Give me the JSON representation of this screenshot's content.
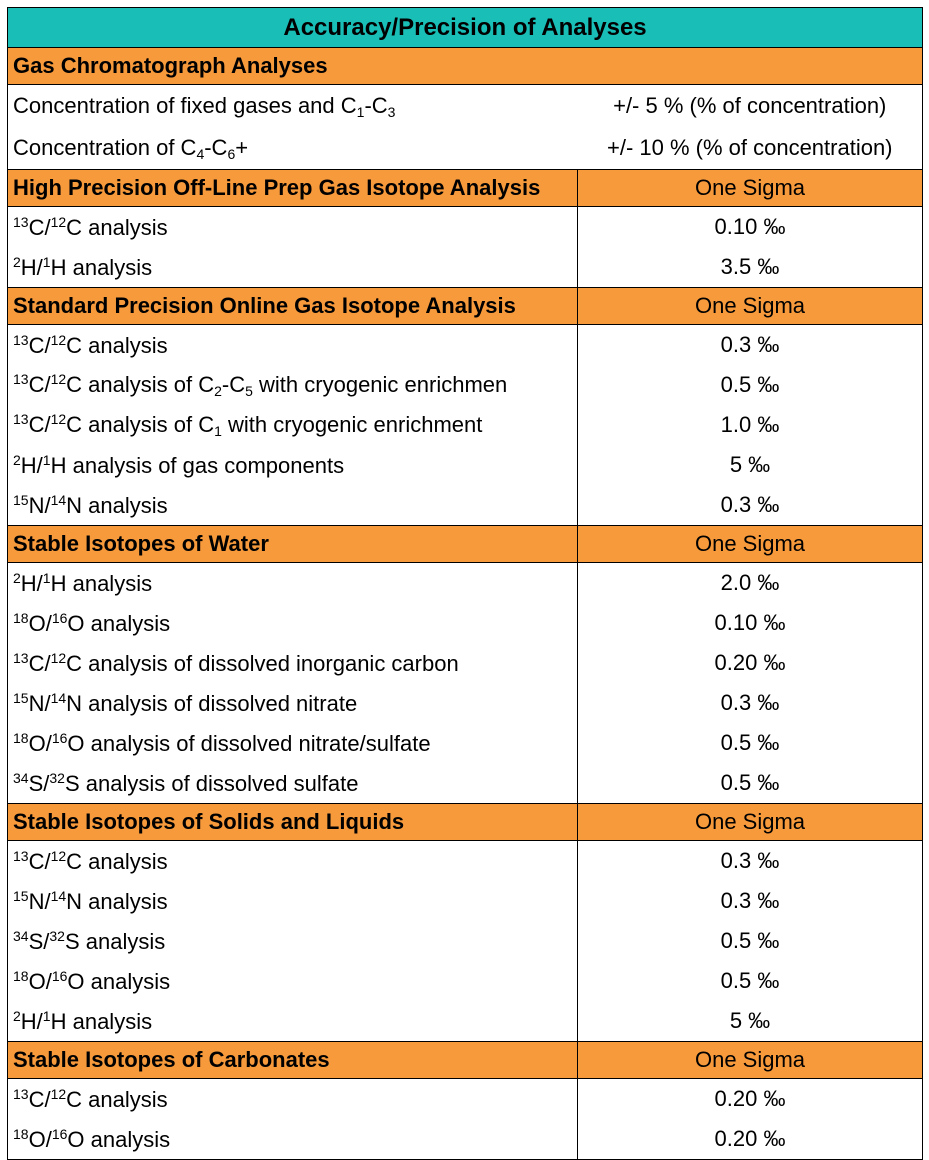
{
  "title": "Accuracy/Precision of Analyses",
  "sections": [
    {
      "header": "Gas Chromatograph Analyses",
      "rows": [
        {
          "label": [
            "Concentration of fixed gases and C",
            {
              "sub": "1"
            },
            "-C",
            {
              "sub": "3"
            }
          ],
          "value": "+/- 5 % (% of concentration)"
        },
        {
          "label": [
            "Concentration of C",
            {
              "sub": "4"
            },
            "-C",
            {
              "sub": "6"
            },
            "+"
          ],
          "value": "+/- 10 % (% of concentration)"
        }
      ]
    },
    {
      "header": "High Precision Off-Line Prep Gas Isotope Analysis",
      "header_value": "One Sigma",
      "rows": [
        {
          "label": [
            {
              "sup": "13"
            },
            "C/",
            {
              "sup": "12"
            },
            "C analysis"
          ],
          "value": "0.10 ‰"
        },
        {
          "label": [
            {
              "sup": "2"
            },
            "H/",
            {
              "sup": "1"
            },
            "H analysis"
          ],
          "value": "3.5 ‰"
        }
      ]
    },
    {
      "header": "Standard Precision Online Gas Isotope Analysis",
      "header_value": "One Sigma",
      "rows": [
        {
          "label": [
            {
              "sup": "13"
            },
            "C/",
            {
              "sup": "12"
            },
            "C analysis"
          ],
          "value": "0.3 ‰"
        },
        {
          "label": [
            {
              "sup": "13"
            },
            "C/",
            {
              "sup": "12"
            },
            "C analysis of C",
            {
              "sub": "2"
            },
            "-C",
            {
              "sub": "5"
            },
            " with cryogenic enrichmen"
          ],
          "value": "0.5 ‰"
        },
        {
          "label": [
            {
              "sup": "13"
            },
            "C/",
            {
              "sup": "12"
            },
            "C analysis of C",
            {
              "sub": "1"
            },
            " with cryogenic enrichment"
          ],
          "value": "1.0 ‰"
        },
        {
          "label": [
            {
              "sup": "2"
            },
            "H/",
            {
              "sup": "1"
            },
            "H analysis of gas components"
          ],
          "value": "5 ‰"
        },
        {
          "label": [
            {
              "sup": "15"
            },
            "N/",
            {
              "sup": "14"
            },
            "N analysis"
          ],
          "value": "0.3 ‰"
        }
      ]
    },
    {
      "header": "Stable Isotopes of Water",
      "header_value": "One Sigma",
      "rows": [
        {
          "label": [
            {
              "sup": "2"
            },
            "H/",
            {
              "sup": "1"
            },
            "H analysis"
          ],
          "value": "2.0 ‰"
        },
        {
          "label": [
            {
              "sup": "18"
            },
            "O/",
            {
              "sup": "16"
            },
            "O analysis"
          ],
          "value": "0.10 ‰"
        },
        {
          "label": [
            {
              "sup": "13"
            },
            "C/",
            {
              "sup": "12"
            },
            "C analysis of dissolved inorganic carbon"
          ],
          "value": "0.20 ‰"
        },
        {
          "label": [
            {
              "sup": "15"
            },
            "N/",
            {
              "sup": "14"
            },
            "N analysis of dissolved nitrate"
          ],
          "value": "0.3 ‰"
        },
        {
          "label": [
            {
              "sup": "18"
            },
            "O/",
            {
              "sup": "16"
            },
            "O analysis of dissolved nitrate/sulfate"
          ],
          "value": "0.5 ‰"
        },
        {
          "label": [
            {
              "sup": "34"
            },
            "S/",
            {
              "sup": "32"
            },
            "S analysis of dissolved sulfate"
          ],
          "value": "0.5 ‰"
        }
      ]
    },
    {
      "header": "Stable Isotopes of Solids and Liquids",
      "header_value": "One Sigma",
      "rows": [
        {
          "label": [
            {
              "sup": "13"
            },
            "C/",
            {
              "sup": "12"
            },
            "C analysis"
          ],
          "value": "0.3 ‰"
        },
        {
          "label": [
            {
              "sup": "15"
            },
            "N/",
            {
              "sup": "14"
            },
            "N analysis"
          ],
          "value": "0.3 ‰"
        },
        {
          "label": [
            {
              "sup": "34"
            },
            "S/",
            {
              "sup": "32"
            },
            "S analysis"
          ],
          "value": "0.5 ‰"
        },
        {
          "label": [
            {
              "sup": "18"
            },
            "O/",
            {
              "sup": "16"
            },
            "O analysis"
          ],
          "value": "0.5 ‰"
        },
        {
          "label": [
            {
              "sup": "2"
            },
            "H/",
            {
              "sup": "1"
            },
            "H analysis"
          ],
          "value": "5 ‰"
        }
      ]
    },
    {
      "header": "Stable Isotopes of Carbonates",
      "header_value": "One Sigma",
      "rows": [
        {
          "label": [
            {
              "sup": "13"
            },
            "C/",
            {
              "sup": "12"
            },
            "C analysis"
          ],
          "value": "0.20 ‰"
        },
        {
          "label": [
            {
              "sup": "18"
            },
            "O/",
            {
              "sup": "16"
            },
            "O analysis"
          ],
          "value": "0.20 ‰"
        }
      ]
    }
  ]
}
